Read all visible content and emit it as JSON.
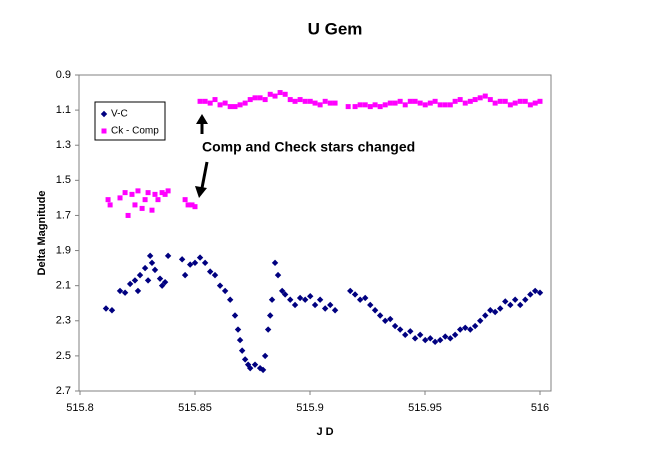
{
  "chart_data": {
    "type": "scatter",
    "title": "U Gem",
    "xlabel": "J D",
    "ylabel": "Delta Magnitude",
    "annotation": "Comp and Check stars changed",
    "xlim": [
      515.8,
      516.0
    ],
    "xticks": [
      515.8,
      515.85,
      515.9,
      515.95,
      516
    ],
    "ylim": [
      0.9,
      2.7
    ],
    "yticks": [
      0.9,
      1.1,
      1.3,
      1.5,
      1.7,
      1.9,
      2.1,
      2.3,
      2.5,
      2.7
    ],
    "y_inverted": true,
    "grid": false,
    "legend": "upper left",
    "series": [
      {
        "name": "V-C",
        "color": "#000080",
        "marker": "diamond",
        "x": [
          515.8113,
          515.8139,
          515.8174,
          515.8196,
          515.8218,
          515.8239,
          515.8252,
          515.8261,
          515.8283,
          515.8296,
          515.8305,
          515.8313,
          515.8326,
          515.8348,
          515.8357,
          515.837,
          515.8383,
          515.8444,
          515.8457,
          515.8479,
          515.85,
          515.8522,
          515.8544,
          515.8566,
          515.8587,
          515.8609,
          515.8631,
          515.8653,
          515.8674,
          515.8687,
          515.8696,
          515.8705,
          515.8718,
          515.8731,
          515.874,
          515.8761,
          515.8783,
          515.8796,
          515.8805,
          515.8818,
          515.8827,
          515.8835,
          515.8848,
          515.8861,
          515.8879,
          515.8892,
          515.8914,
          515.8935,
          515.8957,
          515.8979,
          515.9001,
          515.9022,
          515.9044,
          515.9066,
          515.9088,
          515.9109,
          515.9175,
          515.9196,
          515.9218,
          515.924,
          515.9262,
          515.9283,
          515.9305,
          515.9327,
          515.9349,
          515.937,
          515.9392,
          515.9414,
          515.9436,
          515.9457,
          515.9479,
          515.9501,
          515.9523,
          515.9544,
          515.9566,
          515.9588,
          515.961,
          515.9631,
          515.9653,
          515.9675,
          515.9697,
          515.9718,
          515.974,
          515.9762,
          515.9784,
          515.9805,
          515.9827,
          515.9849,
          515.9871,
          515.9892,
          515.9914,
          515.9936,
          515.9958,
          515.9979,
          516.0
        ],
        "values": [
          2.23,
          2.24,
          2.13,
          2.14,
          2.09,
          2.07,
          2.13,
          2.04,
          2.0,
          2.07,
          1.93,
          1.97,
          2.01,
          2.06,
          2.1,
          2.08,
          1.93,
          1.95,
          2.04,
          1.98,
          1.97,
          1.94,
          1.97,
          2.02,
          2.04,
          2.1,
          2.13,
          2.18,
          2.27,
          2.35,
          2.41,
          2.47,
          2.52,
          2.55,
          2.57,
          2.55,
          2.57,
          2.58,
          2.5,
          2.35,
          2.27,
          2.18,
          1.97,
          2.04,
          2.13,
          2.15,
          2.18,
          2.21,
          2.17,
          2.18,
          2.16,
          2.21,
          2.18,
          2.23,
          2.21,
          2.24,
          2.13,
          2.15,
          2.18,
          2.17,
          2.21,
          2.24,
          2.27,
          2.3,
          2.29,
          2.33,
          2.35,
          2.38,
          2.36,
          2.4,
          2.38,
          2.41,
          2.4,
          2.42,
          2.41,
          2.39,
          2.4,
          2.38,
          2.35,
          2.34,
          2.35,
          2.33,
          2.3,
          2.27,
          2.24,
          2.25,
          2.23,
          2.19,
          2.21,
          2.18,
          2.21,
          2.18,
          2.15,
          2.13,
          2.14
        ]
      },
      {
        "name": "Ck - Comp",
        "color": "#ff00ff",
        "marker": "square",
        "x": [
          515.8122,
          515.8131,
          515.8174,
          515.8196,
          515.8209,
          515.8226,
          515.8239,
          515.8252,
          515.827,
          515.8283,
          515.8296,
          515.8313,
          515.8326,
          515.8339,
          515.8357,
          515.837,
          515.8383,
          515.8457,
          515.847,
          515.8487,
          515.85,
          515.8522,
          515.8544,
          515.8566,
          515.8587,
          515.8609,
          515.8631,
          515.8653,
          515.8674,
          515.8696,
          515.8718,
          515.874,
          515.8761,
          515.8783,
          515.8805,
          515.8827,
          515.8848,
          515.887,
          515.8892,
          515.8914,
          515.8935,
          515.8957,
          515.8979,
          515.9001,
          515.9022,
          515.9044,
          515.9066,
          515.9088,
          515.9109,
          515.9166,
          515.9196,
          515.9218,
          515.924,
          515.9262,
          515.9283,
          515.9305,
          515.9327,
          515.9349,
          515.937,
          515.9392,
          515.9414,
          515.9436,
          515.9457,
          515.9479,
          515.9501,
          515.9523,
          515.9544,
          515.9566,
          515.9588,
          515.961,
          515.9631,
          515.9653,
          515.9675,
          515.9697,
          515.9718,
          515.974,
          515.9762,
          515.9784,
          515.9805,
          515.9827,
          515.9849,
          515.9871,
          515.9892,
          515.9914,
          515.9936,
          515.9958,
          515.9979,
          516.0
        ],
        "values": [
          1.61,
          1.64,
          1.6,
          1.57,
          1.7,
          1.58,
          1.64,
          1.56,
          1.66,
          1.61,
          1.57,
          1.67,
          1.58,
          1.61,
          1.57,
          1.58,
          1.56,
          1.61,
          1.64,
          1.64,
          1.65,
          1.05,
          1.05,
          1.06,
          1.04,
          1.07,
          1.06,
          1.08,
          1.08,
          1.07,
          1.06,
          1.04,
          1.03,
          1.03,
          1.04,
          1.01,
          1.02,
          1.0,
          1.01,
          1.04,
          1.05,
          1.04,
          1.05,
          1.05,
          1.06,
          1.07,
          1.05,
          1.06,
          1.06,
          1.08,
          1.08,
          1.07,
          1.07,
          1.08,
          1.07,
          1.08,
          1.07,
          1.06,
          1.06,
          1.05,
          1.07,
          1.05,
          1.05,
          1.06,
          1.07,
          1.06,
          1.05,
          1.07,
          1.07,
          1.07,
          1.05,
          1.04,
          1.06,
          1.05,
          1.04,
          1.03,
          1.02,
          1.04,
          1.06,
          1.05,
          1.05,
          1.07,
          1.06,
          1.05,
          1.05,
          1.07,
          1.06,
          1.05
        ]
      }
    ]
  }
}
